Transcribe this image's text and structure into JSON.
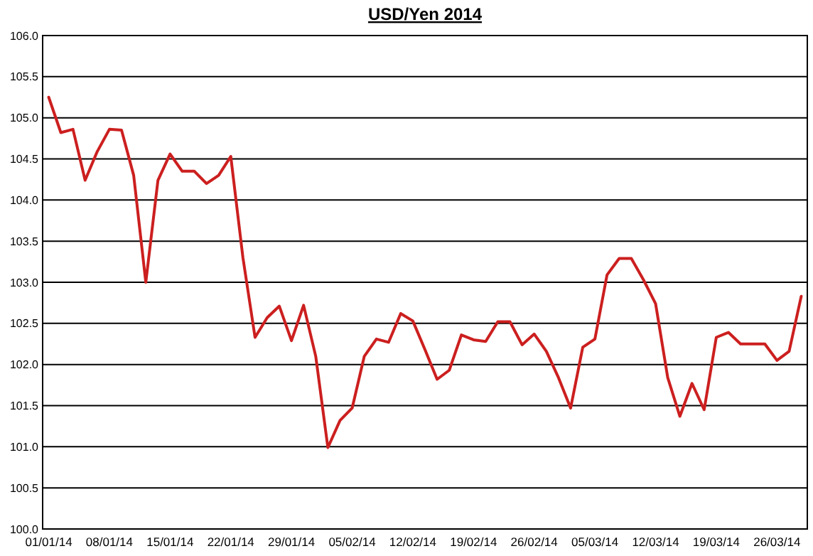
{
  "chart_data": {
    "type": "line",
    "title": "USD/Yen 2014",
    "categories": [
      "01/01/14",
      null,
      null,
      null,
      null,
      "08/01/14",
      null,
      null,
      null,
      null,
      "15/01/14",
      null,
      null,
      null,
      null,
      "22/01/14",
      null,
      null,
      null,
      null,
      "29/01/14",
      null,
      null,
      null,
      null,
      "05/02/14",
      null,
      null,
      null,
      null,
      "12/02/14",
      null,
      null,
      null,
      null,
      "19/02/14",
      null,
      null,
      null,
      null,
      "26/02/14",
      null,
      null,
      null,
      null,
      "05/03/14",
      null,
      null,
      null,
      null,
      "12/03/14",
      null,
      null,
      null,
      null,
      "19/03/14",
      null,
      null,
      null,
      null,
      "26/03/14",
      null,
      null
    ],
    "series": [
      {
        "color": "#cc1f1f",
        "values": [
          105.25,
          104.82,
          104.86,
          104.24,
          104.59,
          104.86,
          104.85,
          104.3,
          103.0,
          104.24,
          104.56,
          104.35,
          104.35,
          104.2,
          104.3,
          104.53,
          103.3,
          102.33,
          102.57,
          102.71,
          102.29,
          102.72,
          102.1,
          100.99,
          101.32,
          101.47,
          102.1,
          102.31,
          102.27,
          102.62,
          102.53,
          102.18,
          101.82,
          101.93,
          102.36,
          102.3,
          102.28,
          102.52,
          102.52,
          102.24,
          102.37,
          102.16,
          101.84,
          101.47,
          102.21,
          102.31,
          103.09,
          103.29,
          103.29,
          103.03,
          102.74,
          101.84,
          101.37,
          101.77,
          101.45,
          102.33,
          102.39,
          102.25,
          102.25,
          102.25,
          102.05,
          102.16,
          102.83
        ]
      }
    ],
    "ylim": [
      100,
      106
    ],
    "yticks": [
      {
        "value": 100,
        "label": "100.0"
      },
      {
        "value": 100.5,
        "label": "100.5"
      },
      {
        "value": 101,
        "label": "101.0"
      },
      {
        "value": 101.5,
        "label": "101.5"
      },
      {
        "value": 102,
        "label": "102.0"
      },
      {
        "value": 102.5,
        "label": "102.5"
      },
      {
        "value": 103,
        "label": "103.0"
      },
      {
        "value": 103.5,
        "label": "103.5"
      },
      {
        "value": 104,
        "label": "104.0"
      },
      {
        "value": 104.5,
        "label": "104.5"
      },
      {
        "value": 105,
        "label": "105.0"
      },
      {
        "value": 105.5,
        "label": "105.5"
      },
      {
        "value": 106,
        "label": "106.0"
      }
    ],
    "grid": "y",
    "marker": "none",
    "line_style": "solid"
  }
}
